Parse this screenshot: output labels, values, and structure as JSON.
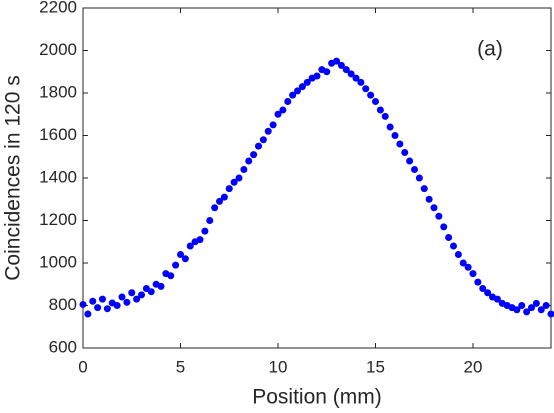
{
  "chart_data": {
    "type": "scatter",
    "xlabel": "Position (mm)",
    "ylabel": "Coincidences in 120 s",
    "annotation": "(a)",
    "x": [
      0,
      0.25,
      0.5,
      0.75,
      1,
      1.25,
      1.5,
      1.75,
      2,
      2.25,
      2.5,
      2.75,
      3,
      3.25,
      3.5,
      3.75,
      4,
      4.25,
      4.5,
      4.75,
      5,
      5.25,
      5.5,
      5.75,
      6,
      6.25,
      6.5,
      6.75,
      7,
      7.25,
      7.5,
      7.75,
      8,
      8.25,
      8.5,
      8.75,
      9,
      9.25,
      9.5,
      9.75,
      10,
      10.25,
      10.5,
      10.75,
      11,
      11.25,
      11.5,
      11.75,
      12,
      12.25,
      12.5,
      12.75,
      13,
      13.25,
      13.5,
      13.75,
      14,
      14.25,
      14.5,
      14.75,
      15,
      15.25,
      15.5,
      15.75,
      16,
      16.25,
      16.5,
      16.75,
      17,
      17.25,
      17.5,
      17.75,
      18,
      18.25,
      18.5,
      18.75,
      19,
      19.25,
      19.5,
      19.75,
      20,
      20.25,
      20.5,
      20.75,
      21,
      21.25,
      21.5,
      21.75,
      22,
      22.25,
      22.5,
      22.75,
      23,
      23.25,
      23.5,
      23.75,
      24
    ],
    "values": [
      805,
      760,
      820,
      790,
      830,
      785,
      812,
      800,
      840,
      815,
      860,
      830,
      850,
      880,
      865,
      900,
      890,
      950,
      940,
      990,
      1040,
      1020,
      1080,
      1100,
      1110,
      1150,
      1200,
      1260,
      1290,
      1310,
      1350,
      1380,
      1400,
      1440,
      1480,
      1510,
      1550,
      1580,
      1620,
      1650,
      1700,
      1720,
      1760,
      1790,
      1810,
      1830,
      1850,
      1870,
      1880,
      1910,
      1900,
      1940,
      1950,
      1930,
      1910,
      1890,
      1870,
      1850,
      1820,
      1790,
      1760,
      1720,
      1690,
      1640,
      1600,
      1560,
      1520,
      1480,
      1440,
      1400,
      1350,
      1300,
      1260,
      1220,
      1170,
      1120,
      1080,
      1040,
      1000,
      980,
      950,
      910,
      880,
      860,
      840,
      830,
      810,
      800,
      790,
      780,
      800,
      770,
      790,
      810,
      780,
      800,
      760
    ],
    "color": "#0000ff",
    "xlim": [
      0,
      24
    ],
    "xticks": [
      0,
      5,
      10,
      15,
      20
    ],
    "ylim": [
      600,
      2200
    ],
    "yticks": [
      600,
      800,
      1000,
      1200,
      1400,
      1600,
      1800,
      2000,
      2200
    ],
    "grid": false
  }
}
